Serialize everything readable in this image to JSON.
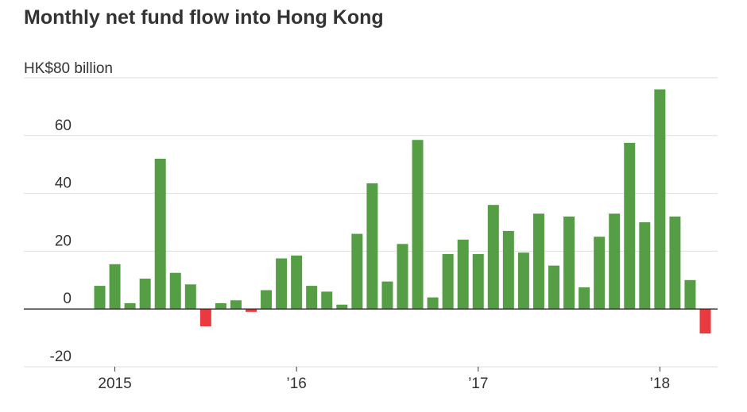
{
  "title": "Monthly net fund flow into Hong Kong",
  "chart_data": {
    "type": "bar",
    "title": "Monthly net fund flow into Hong Kong",
    "y_unit_label": "HK$80 billion",
    "ylim": [
      -20,
      80
    ],
    "y_ticks": [
      {
        "value": 60,
        "label": "60"
      },
      {
        "value": 40,
        "label": "40"
      },
      {
        "value": 20,
        "label": "20"
      },
      {
        "value": 0,
        "label": "0"
      },
      {
        "value": -20,
        "label": "-20"
      }
    ],
    "x_ticks": [
      {
        "index": 1,
        "label": "2015"
      },
      {
        "index": 13,
        "label": "’16"
      },
      {
        "index": 25,
        "label": "’17"
      },
      {
        "index": 37,
        "label": "’18"
      }
    ],
    "values": [
      8,
      15.5,
      2,
      10.5,
      52,
      12.5,
      8.5,
      -6,
      2,
      3,
      -1,
      6.5,
      17.5,
      18.5,
      8,
      6,
      1.5,
      26,
      43.5,
      9.5,
      22.5,
      58.5,
      4,
      19,
      24,
      19,
      36,
      27,
      19.5,
      33,
      15,
      32,
      7.5,
      25,
      33,
      57.5,
      30,
      76,
      32,
      10,
      -8.5
    ],
    "grid": true,
    "colors": {
      "positive": "#559e46",
      "negative": "#ea3a3f",
      "grid": "#dddddd",
      "axis": "#333333"
    }
  }
}
